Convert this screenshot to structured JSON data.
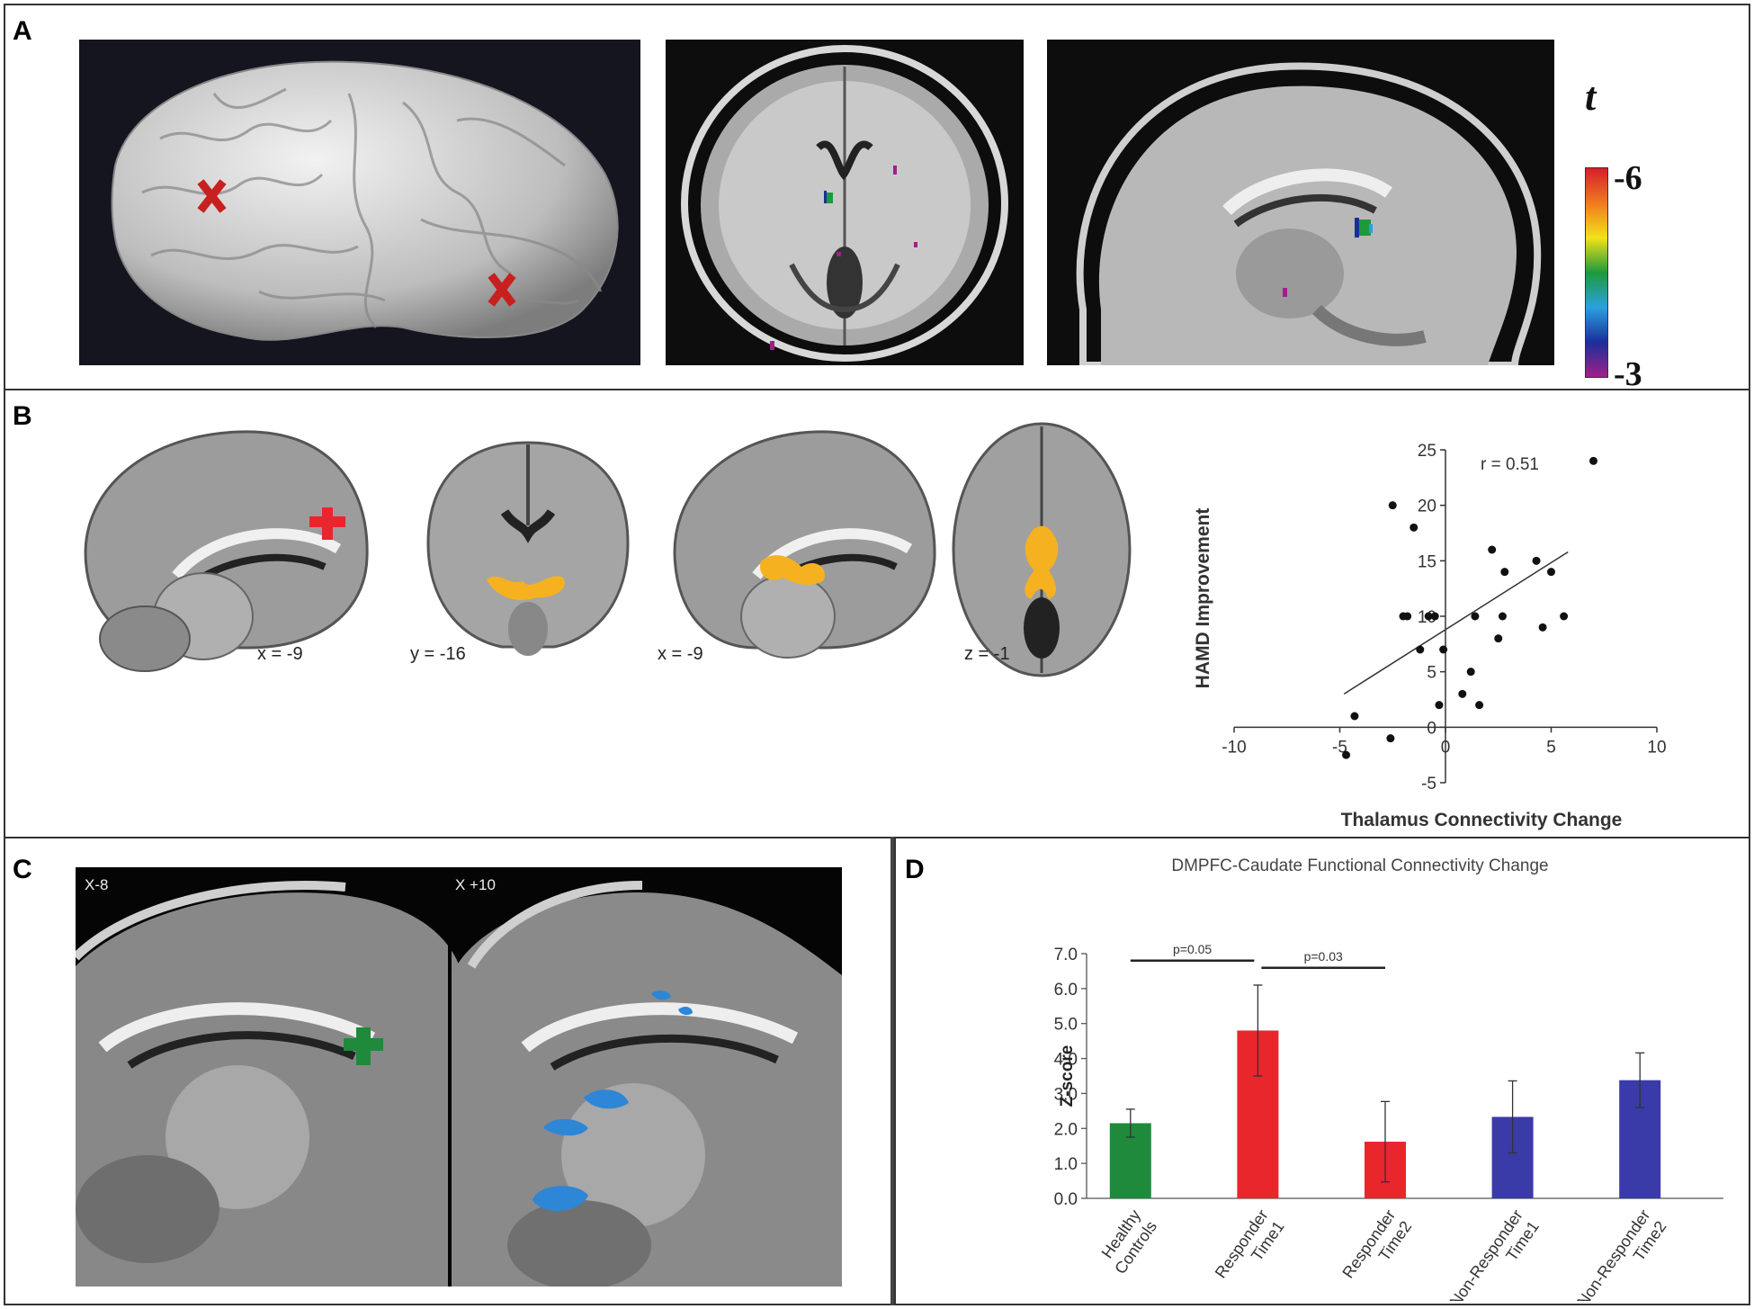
{
  "panels": {
    "a": {
      "label": "A"
    },
    "b": {
      "label": "B",
      "slice_labels": [
        "x = -9",
        "y = -16",
        "x = -9",
        "z = -1"
      ]
    },
    "c": {
      "label": "C",
      "slice_labels": [
        "X-8",
        "X +10"
      ]
    },
    "d": {
      "label": "D"
    }
  },
  "colorbar": {
    "symbol": "t",
    "top_label": "-6",
    "bottom_label": "-3",
    "colors": [
      "#d4202a",
      "#f07a1f",
      "#f4e11a",
      "#1e9a3a",
      "#2aa0e0",
      "#1a2f9a",
      "#a0208a"
    ]
  },
  "chart_data": [
    {
      "type": "scatter",
      "annotation": "r = 0.51",
      "xlabel": "Thalamus Connectivity Change",
      "ylabel": "HAMD Improvement",
      "xlim": [
        -10,
        10
      ],
      "ylim": [
        -5,
        25
      ],
      "xticks": [
        -10,
        -5,
        0,
        5,
        10
      ],
      "yticks": [
        -5,
        0,
        5,
        10,
        15,
        20,
        25
      ],
      "points": [
        [
          -4.7,
          -2.5
        ],
        [
          -4.3,
          1
        ],
        [
          -2.6,
          -1
        ],
        [
          -2.5,
          20
        ],
        [
          -2.0,
          10
        ],
        [
          -1.8,
          10
        ],
        [
          -1.5,
          18
        ],
        [
          -1.2,
          7
        ],
        [
          -0.8,
          10
        ],
        [
          -0.5,
          10
        ],
        [
          -0.3,
          2
        ],
        [
          -0.1,
          7
        ],
        [
          0.8,
          3
        ],
        [
          1.2,
          5
        ],
        [
          1.4,
          10
        ],
        [
          1.6,
          2
        ],
        [
          2.2,
          16
        ],
        [
          2.5,
          8
        ],
        [
          2.7,
          10
        ],
        [
          2.8,
          14
        ],
        [
          4.3,
          15
        ],
        [
          4.6,
          9
        ],
        [
          5.0,
          14
        ],
        [
          5.6,
          10
        ],
        [
          7.0,
          24
        ]
      ],
      "fit_line": [
        [
          -4.8,
          3.0
        ],
        [
          5.8,
          15.8
        ]
      ],
      "grid": false
    },
    {
      "type": "bar",
      "title": "DMPFC-Caudate Functional Connectivity Change",
      "ylabel": "Z-score",
      "ylim": [
        0,
        7
      ],
      "yticks": [
        "0.0",
        "1.0",
        "2.0",
        "3.0",
        "4.0",
        "5.0",
        "6.0",
        "7.0"
      ],
      "categories": [
        [
          "Healthy",
          "Controls"
        ],
        [
          "Responder",
          "Time1"
        ],
        [
          "Responder",
          "Time2"
        ],
        [
          "Non-Responder",
          "Time1"
        ],
        [
          "Non-Responder",
          "Time2"
        ]
      ],
      "values": [
        2.15,
        4.8,
        1.62,
        2.33,
        3.38
      ],
      "errors": [
        0.4,
        1.3,
        1.15,
        1.03,
        0.78
      ],
      "colors": [
        "#1f8a3c",
        "#e8262b",
        "#e8262b",
        "#3a3aa8",
        "#3a3aa8"
      ],
      "significance": [
        {
          "from": 0,
          "to": 1,
          "label": "p=0.05"
        },
        {
          "from": 1,
          "to": 2,
          "label": "p=0.03"
        }
      ]
    }
  ]
}
